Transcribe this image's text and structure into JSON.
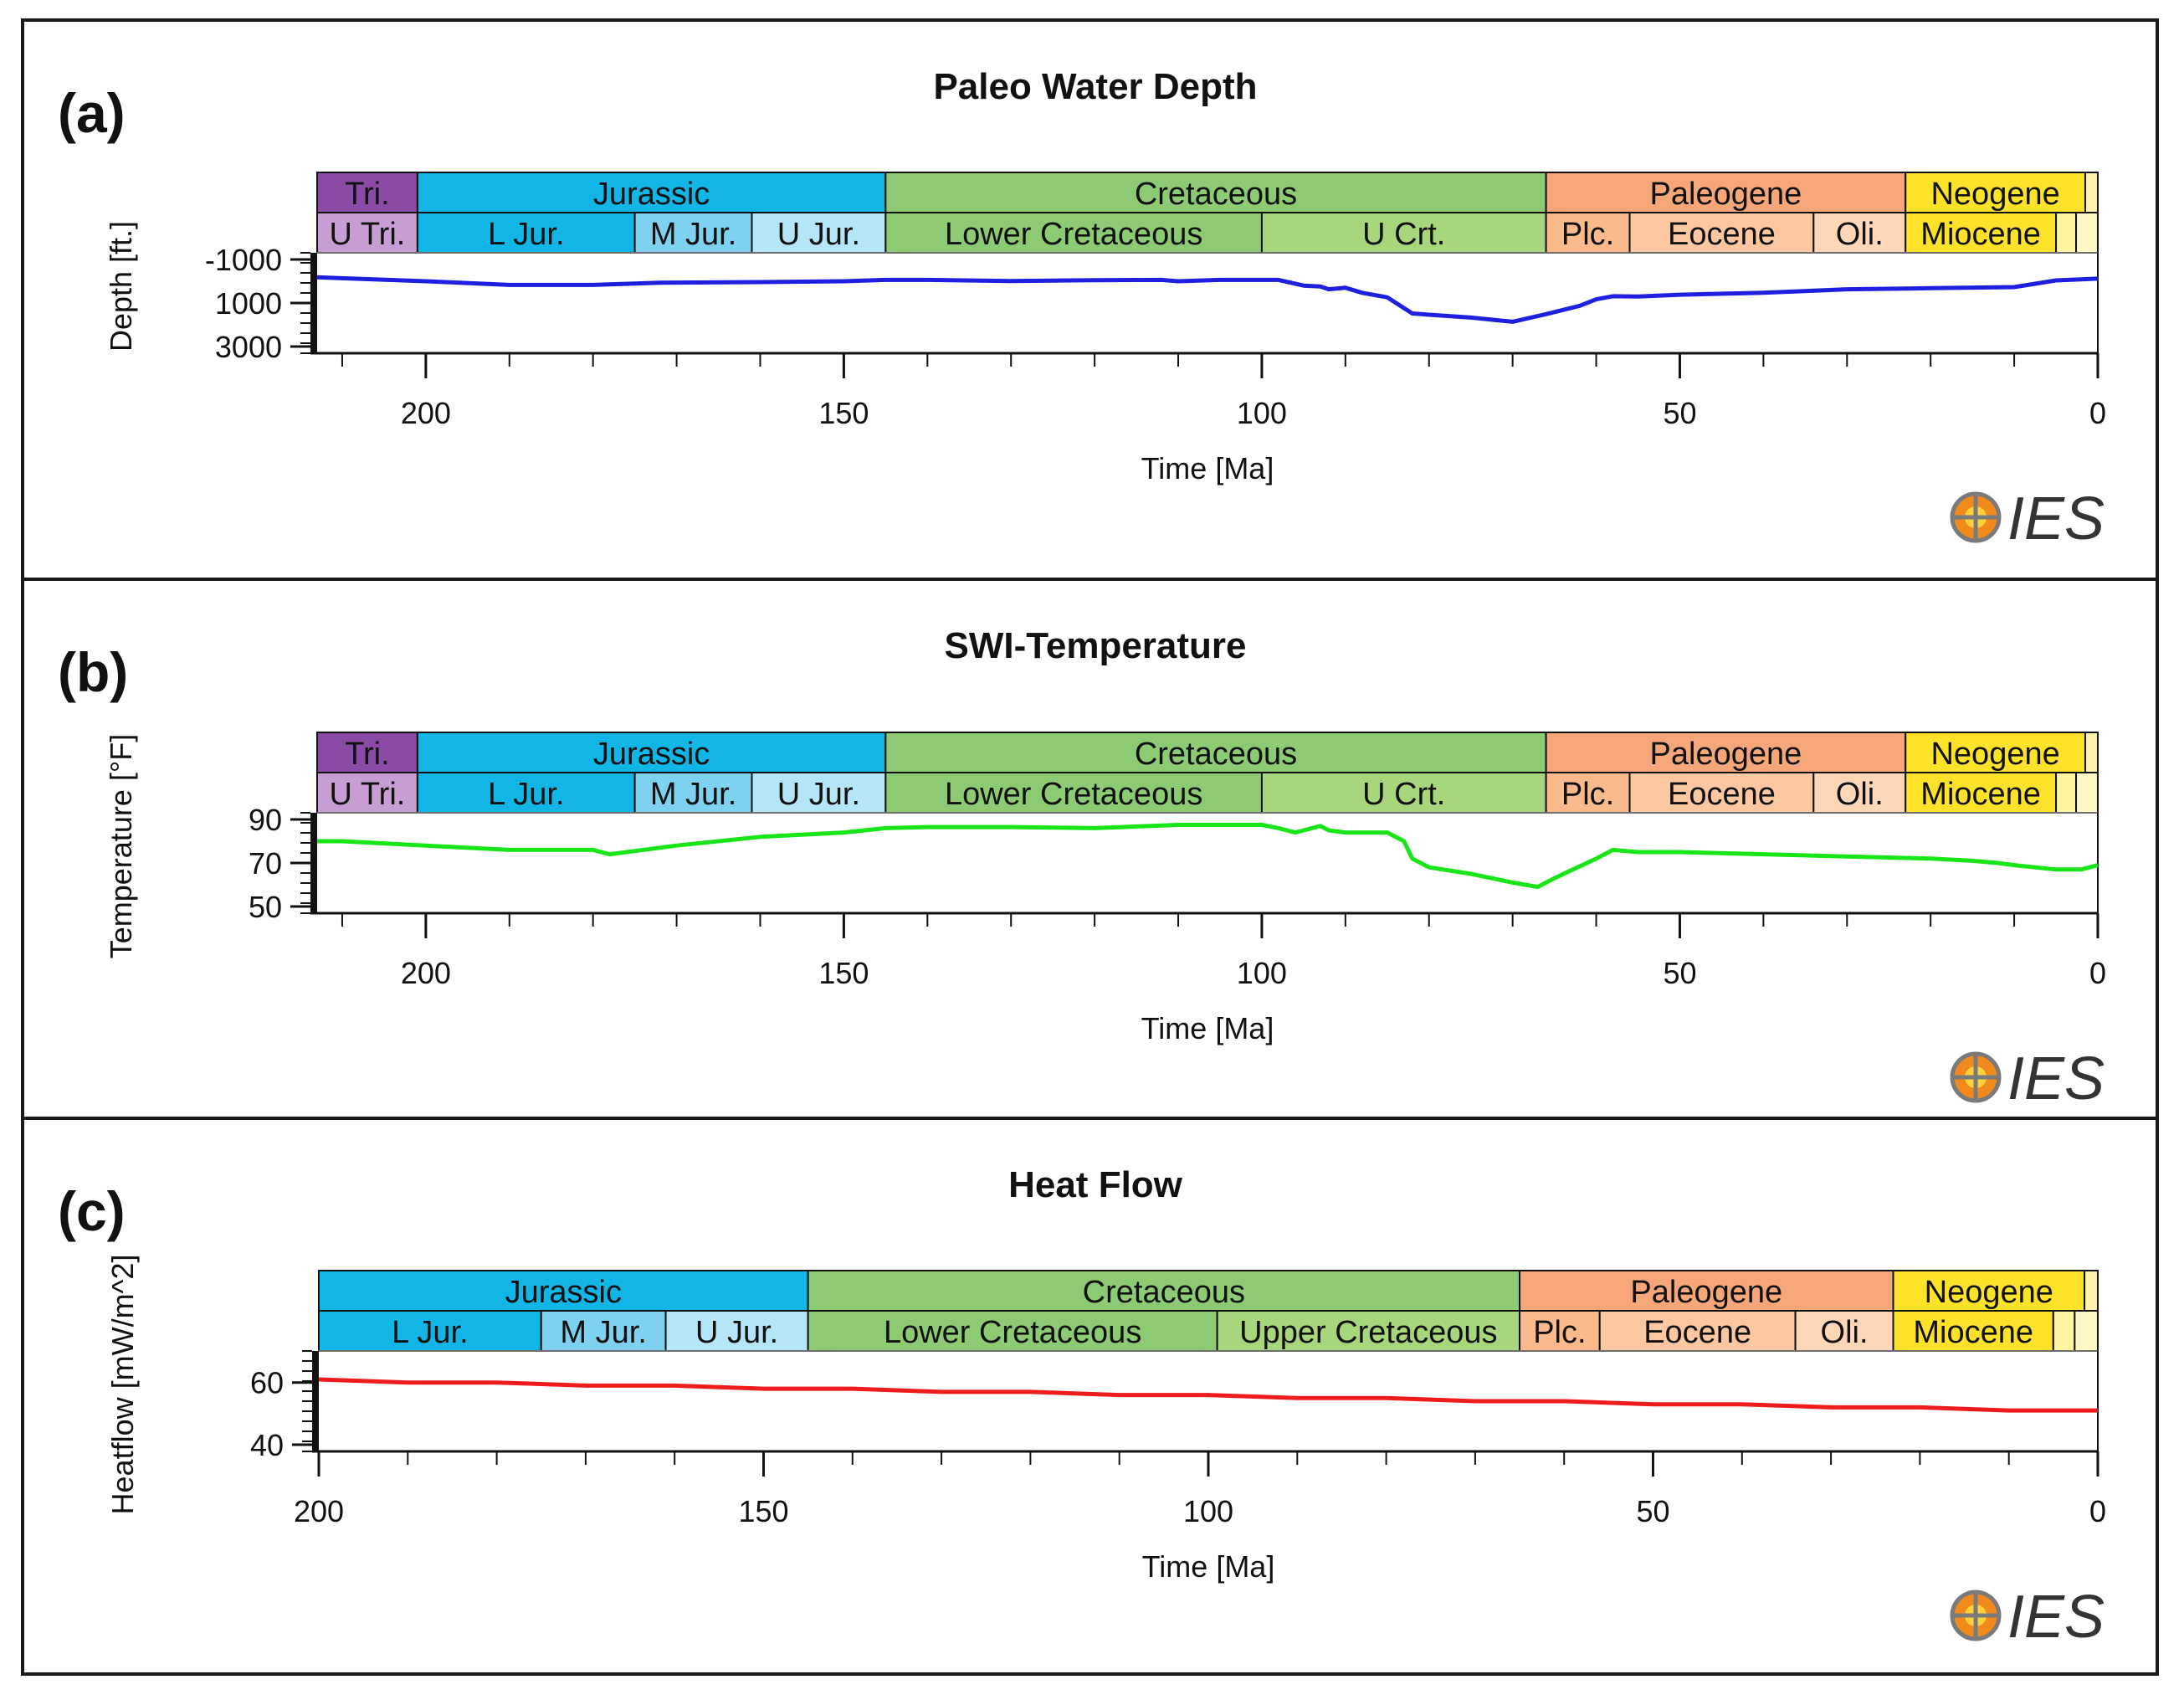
{
  "chart_data": [
    {
      "type": "line",
      "panel_label": "(a)",
      "title": "Paleo Water Depth",
      "xlabel": "Time [Ma]",
      "ylabel": "Depth [ft.]",
      "xlim": [
        213,
        0
      ],
      "ylim": [
        -1000,
        3000
      ],
      "y_inverted": true,
      "yticks": [
        -1000,
        1000,
        3000
      ],
      "xticks": [
        200,
        150,
        100,
        50,
        0
      ],
      "series": [
        {
          "name": "Paleo Water Depth",
          "color": "#1f1fe0",
          "x": [
            213,
            200,
            190,
            180,
            172,
            160,
            150,
            145,
            140,
            130,
            120,
            112,
            110,
            105,
            100,
            98,
            95,
            93,
            92,
            90,
            88,
            85,
            82,
            80,
            75,
            70,
            66,
            62,
            60,
            58,
            55,
            50,
            40,
            30,
            20,
            10,
            5,
            0
          ],
          "y": [
            -180,
            0,
            170,
            170,
            70,
            40,
            0,
            -60,
            -60,
            -10,
            -50,
            -60,
            0,
            -60,
            -60,
            -60,
            200,
            240,
            370,
            300,
            530,
            740,
            1480,
            1540,
            1670,
            1860,
            1510,
            1130,
            830,
            690,
            700,
            620,
            530,
            370,
            320,
            270,
            -40,
            -120
          ]
        }
      ],
      "eras": [
        {
          "label": "Tri.",
          "start": 213,
          "end": 201,
          "color": "#8b4aa5"
        },
        {
          "label": "Jurassic",
          "start": 201,
          "end": 145,
          "color": "#12b6e6"
        },
        {
          "label": "Cretaceous",
          "start": 145,
          "end": 66,
          "color": "#8ccb73"
        },
        {
          "label": "Paleogene",
          "start": 66,
          "end": 23,
          "color": "#f5a77a"
        },
        {
          "label": "Neogene",
          "start": 23,
          "end": 1.5,
          "color": "#fde22a"
        },
        {
          "label": "",
          "start": 1.5,
          "end": 0,
          "color": "#fff3a8"
        }
      ],
      "epochs": [
        {
          "label": "U Tri.",
          "start": 213,
          "end": 201,
          "color": "#c69ed4"
        },
        {
          "label": "L Jur.",
          "start": 201,
          "end": 175,
          "color": "#12b6e6"
        },
        {
          "label": "M Jur.",
          "start": 175,
          "end": 161,
          "color": "#7ed1ef"
        },
        {
          "label": "U Jur.",
          "start": 161,
          "end": 145,
          "color": "#b5e6f8"
        },
        {
          "label": "Lower Cretaceous",
          "start": 145,
          "end": 100,
          "color": "#8ccb73"
        },
        {
          "label": "U Crt.",
          "start": 100,
          "end": 66,
          "color": "#a7d67c"
        },
        {
          "label": "Plc.",
          "start": 66,
          "end": 56,
          "color": "#fbba8c"
        },
        {
          "label": "Eocene",
          "start": 56,
          "end": 34,
          "color": "#fcc7a1"
        },
        {
          "label": "Oli.",
          "start": 34,
          "end": 23,
          "color": "#fdd7b8"
        },
        {
          "label": "Miocene",
          "start": 23,
          "end": 5,
          "color": "#fde22a"
        },
        {
          "label": "",
          "start": 5,
          "end": 2.6,
          "color": "#fff4a0"
        },
        {
          "label": "",
          "start": 2.6,
          "end": 0,
          "color": "#fff8c6"
        }
      ],
      "logo": "IES"
    },
    {
      "type": "line",
      "panel_label": "(b)",
      "title": "SWI-Temperature",
      "xlabel": "Time [Ma]",
      "ylabel": "Temperature [°F]",
      "xlim": [
        213,
        0
      ],
      "ylim": [
        50,
        90
      ],
      "y_inverted": false,
      "yticks": [
        90,
        70,
        50
      ],
      "xticks": [
        200,
        150,
        100,
        50,
        0
      ],
      "series": [
        {
          "name": "SWI-Temperature",
          "color": "#19e619",
          "x": [
            213,
            210,
            200,
            190,
            180,
            178,
            170,
            160,
            150,
            145,
            140,
            130,
            120,
            110,
            105,
            100,
            98,
            96,
            95,
            94,
            93,
            92,
            90,
            88,
            85,
            83,
            82,
            80,
            75,
            70,
            67,
            65,
            60,
            58,
            55,
            50,
            40,
            30,
            20,
            15,
            12,
            10,
            5,
            2,
            0
          ],
          "y": [
            80,
            80,
            78,
            76,
            76,
            74,
            78,
            82,
            84,
            86,
            86.5,
            86.5,
            86,
            87.5,
            87.5,
            87.5,
            86,
            84,
            85,
            86,
            87,
            85,
            84,
            84,
            84,
            80,
            72,
            68,
            65,
            61,
            59,
            63,
            72,
            76,
            75,
            75,
            74,
            73,
            72,
            71,
            70,
            69,
            67,
            67,
            69
          ]
        }
      ],
      "eras": [
        {
          "label": "Tri.",
          "start": 213,
          "end": 201,
          "color": "#8b4aa5"
        },
        {
          "label": "Jurassic",
          "start": 201,
          "end": 145,
          "color": "#12b6e6"
        },
        {
          "label": "Cretaceous",
          "start": 145,
          "end": 66,
          "color": "#8ccb73"
        },
        {
          "label": "Paleogene",
          "start": 66,
          "end": 23,
          "color": "#f5a77a"
        },
        {
          "label": "Neogene",
          "start": 23,
          "end": 1.5,
          "color": "#fde22a"
        },
        {
          "label": "",
          "start": 1.5,
          "end": 0,
          "color": "#fff3a8"
        }
      ],
      "epochs": [
        {
          "label": "U Tri.",
          "start": 213,
          "end": 201,
          "color": "#c69ed4"
        },
        {
          "label": "L Jur.",
          "start": 201,
          "end": 175,
          "color": "#12b6e6"
        },
        {
          "label": "M Jur.",
          "start": 175,
          "end": 161,
          "color": "#7ed1ef"
        },
        {
          "label": "U Jur.",
          "start": 161,
          "end": 145,
          "color": "#b5e6f8"
        },
        {
          "label": "Lower Cretaceous",
          "start": 145,
          "end": 100,
          "color": "#8ccb73"
        },
        {
          "label": "U Crt.",
          "start": 100,
          "end": 66,
          "color": "#a7d67c"
        },
        {
          "label": "Plc.",
          "start": 66,
          "end": 56,
          "color": "#fbba8c"
        },
        {
          "label": "Eocene",
          "start": 56,
          "end": 34,
          "color": "#fcc7a1"
        },
        {
          "label": "Oli.",
          "start": 34,
          "end": 23,
          "color": "#fdd7b8"
        },
        {
          "label": "Miocene",
          "start": 23,
          "end": 5,
          "color": "#fde22a"
        },
        {
          "label": "",
          "start": 5,
          "end": 2.6,
          "color": "#fff4a0"
        },
        {
          "label": "",
          "start": 2.6,
          "end": 0,
          "color": "#fff8c6"
        }
      ],
      "logo": "IES"
    },
    {
      "type": "line",
      "panel_label": "(c)",
      "title": "Heat Flow",
      "xlabel": "Time [Ma]",
      "ylabel": "Heatflow [mW/m^2]",
      "xlim": [
        200,
        0
      ],
      "ylim": [
        40,
        68
      ],
      "y_inverted": false,
      "yticks": [
        60,
        40
      ],
      "xticks": [
        200,
        150,
        100,
        50,
        0
      ],
      "series": [
        {
          "name": "Heat Flow",
          "color": "#ee1c1c",
          "x": [
            200,
            190,
            180,
            170,
            160,
            150,
            140,
            130,
            120,
            110,
            100,
            90,
            80,
            70,
            60,
            50,
            40,
            30,
            20,
            10,
            0
          ],
          "y": [
            61,
            60,
            60,
            59,
            59,
            58,
            58,
            57,
            57,
            56,
            56,
            55,
            55,
            54,
            54,
            53,
            53,
            52,
            52,
            51,
            51
          ]
        }
      ],
      "eras": [
        {
          "label": "Jurassic",
          "start": 200,
          "end": 145,
          "color": "#12b6e6"
        },
        {
          "label": "Cretaceous",
          "start": 145,
          "end": 65,
          "color": "#8ccb73"
        },
        {
          "label": "Paleogene",
          "start": 65,
          "end": 23,
          "color": "#f5a77a"
        },
        {
          "label": "Neogene",
          "start": 23,
          "end": 1.5,
          "color": "#fde22a"
        },
        {
          "label": "",
          "start": 1.5,
          "end": 0,
          "color": "#fff3a8"
        }
      ],
      "epochs": [
        {
          "label": "L Jur.",
          "start": 200,
          "end": 175,
          "color": "#12b6e6"
        },
        {
          "label": "M Jur.",
          "start": 175,
          "end": 161,
          "color": "#7ed1ef"
        },
        {
          "label": "U Jur.",
          "start": 161,
          "end": 145,
          "color": "#b5e6f8"
        },
        {
          "label": "Lower Cretaceous",
          "start": 145,
          "end": 99,
          "color": "#8ccb73"
        },
        {
          "label": "Upper Cretaceous",
          "start": 99,
          "end": 65,
          "color": "#a7d67c"
        },
        {
          "label": "Plc.",
          "start": 65,
          "end": 56,
          "color": "#fbba8c"
        },
        {
          "label": "Eocene",
          "start": 56,
          "end": 34,
          "color": "#fcc7a1"
        },
        {
          "label": "Oli.",
          "start": 34,
          "end": 23,
          "color": "#fdd7b8"
        },
        {
          "label": "Miocene",
          "start": 23,
          "end": 5,
          "color": "#fde22a"
        },
        {
          "label": "",
          "start": 5,
          "end": 2.6,
          "color": "#fff4a0"
        },
        {
          "label": "",
          "start": 2.6,
          "end": 0,
          "color": "#fff8c6"
        }
      ],
      "logo": "IES"
    }
  ]
}
